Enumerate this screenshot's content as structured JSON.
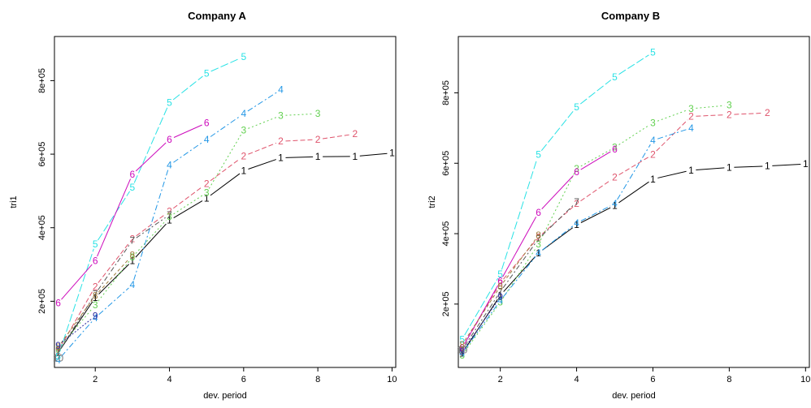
{
  "chart_data": [
    {
      "type": "line",
      "title": "Company A",
      "xlabel": "dev. period",
      "ylabel": "tri1",
      "xlim": [
        0.9,
        10.1
      ],
      "ylim": [
        20000,
        920000
      ],
      "xticks": [
        2,
        4,
        6,
        8,
        10
      ],
      "xtick_labels": [
        "2",
        "4",
        "6",
        "8",
        "10"
      ],
      "yticks": [
        200000,
        400000,
        600000,
        800000
      ],
      "ytick_labels": [
        "2e+05",
        "4e+05",
        "6e+05",
        "8e+05"
      ],
      "grid": false,
      "legend": "none",
      "series": [
        {
          "name": "1",
          "color": "#000000",
          "dash": "solid",
          "values": [
            60000,
            210000,
            310000,
            420000,
            480000,
            555000,
            590000,
            593000,
            594000,
            603000
          ]
        },
        {
          "name": "2",
          "color": "#DF536B",
          "dash": "6,3",
          "values": [
            65000,
            240000,
            370000,
            445000,
            520000,
            595000,
            635000,
            640000,
            655000
          ]
        },
        {
          "name": "3",
          "color": "#61D04F",
          "dash": "2,3",
          "values": [
            70000,
            190000,
            320000,
            430000,
            495000,
            665000,
            705000,
            710000
          ]
        },
        {
          "name": "4",
          "color": "#2297E6",
          "dash": "7,3,2,3",
          "values": [
            40000,
            155000,
            245000,
            570000,
            640000,
            710000,
            775000
          ]
        },
        {
          "name": "5",
          "color": "#28E2E5",
          "dash": "10,3",
          "values": [
            50000,
            355000,
            510000,
            740000,
            820000,
            865000
          ]
        },
        {
          "name": "6",
          "color": "#CD0BBC",
          "dash": "solid",
          "values": [
            195000,
            310000,
            545000,
            640000,
            685000
          ]
        },
        {
          "name": "7",
          "color": "#555555",
          "dash": "6,3,2,3",
          "values": [
            60000,
            220000,
            365000,
            435000
          ]
        },
        {
          "name": "8",
          "color": "#9E7A3A",
          "dash": "4,3",
          "values": [
            75000,
            215000,
            325000
          ]
        },
        {
          "name": "9",
          "color": "#2F2F9F",
          "dash": "2,2",
          "values": [
            80000,
            160000
          ]
        },
        {
          "name": "10",
          "color": "#7A7A7A",
          "dash": "8,2",
          "values": [
            45000
          ]
        }
      ]
    },
    {
      "type": "line",
      "title": "Company B",
      "xlabel": "dev. period",
      "ylabel": "tri2",
      "xlim": [
        0.9,
        10.1
      ],
      "ylim": [
        20000,
        960000
      ],
      "xticks": [
        2,
        4,
        6,
        8,
        10
      ],
      "xtick_labels": [
        "2",
        "4",
        "6",
        "8",
        "10"
      ],
      "yticks": [
        200000,
        400000,
        600000,
        800000
      ],
      "ytick_labels": [
        "2e+05",
        "4e+05",
        "6e+05",
        "8e+05"
      ],
      "grid": false,
      "legend": "none",
      "series": [
        {
          "name": "1",
          "color": "#000000",
          "dash": "solid",
          "values": [
            60000,
            225000,
            345000,
            425000,
            480000,
            555000,
            580000,
            588000,
            592000,
            598000
          ]
        },
        {
          "name": "2",
          "color": "#DF536B",
          "dash": "6,3",
          "values": [
            75000,
            260000,
            390000,
            485000,
            560000,
            625000,
            733000,
            738000,
            743000
          ]
        },
        {
          "name": "3",
          "color": "#61D04F",
          "dash": "2,3",
          "values": [
            55000,
            205000,
            370000,
            585000,
            645000,
            715000,
            755000,
            765000
          ]
        },
        {
          "name": "4",
          "color": "#2297E6",
          "dash": "7,3,2,3",
          "values": [
            60000,
            210000,
            345000,
            430000,
            485000,
            665000,
            700000
          ]
        },
        {
          "name": "5",
          "color": "#28E2E5",
          "dash": "10,3",
          "values": [
            100000,
            285000,
            625000,
            760000,
            845000,
            915000
          ]
        },
        {
          "name": "6",
          "color": "#CD0BBC",
          "dash": "solid",
          "values": [
            75000,
            265000,
            460000,
            575000,
            640000
          ]
        },
        {
          "name": "7",
          "color": "#555555",
          "dash": "6,3,2,3",
          "values": [
            70000,
            235000,
            385000,
            490000
          ]
        },
        {
          "name": "8",
          "color": "#9E7A3A",
          "dash": "4,3",
          "values": [
            85000,
            250000,
            395000
          ]
        },
        {
          "name": "9",
          "color": "#2F2F9F",
          "dash": "2,2",
          "values": [
            65000,
            220000
          ]
        },
        {
          "name": "10",
          "color": "#7A7A7A",
          "dash": "8,2",
          "values": [
            70000
          ]
        }
      ]
    }
  ]
}
